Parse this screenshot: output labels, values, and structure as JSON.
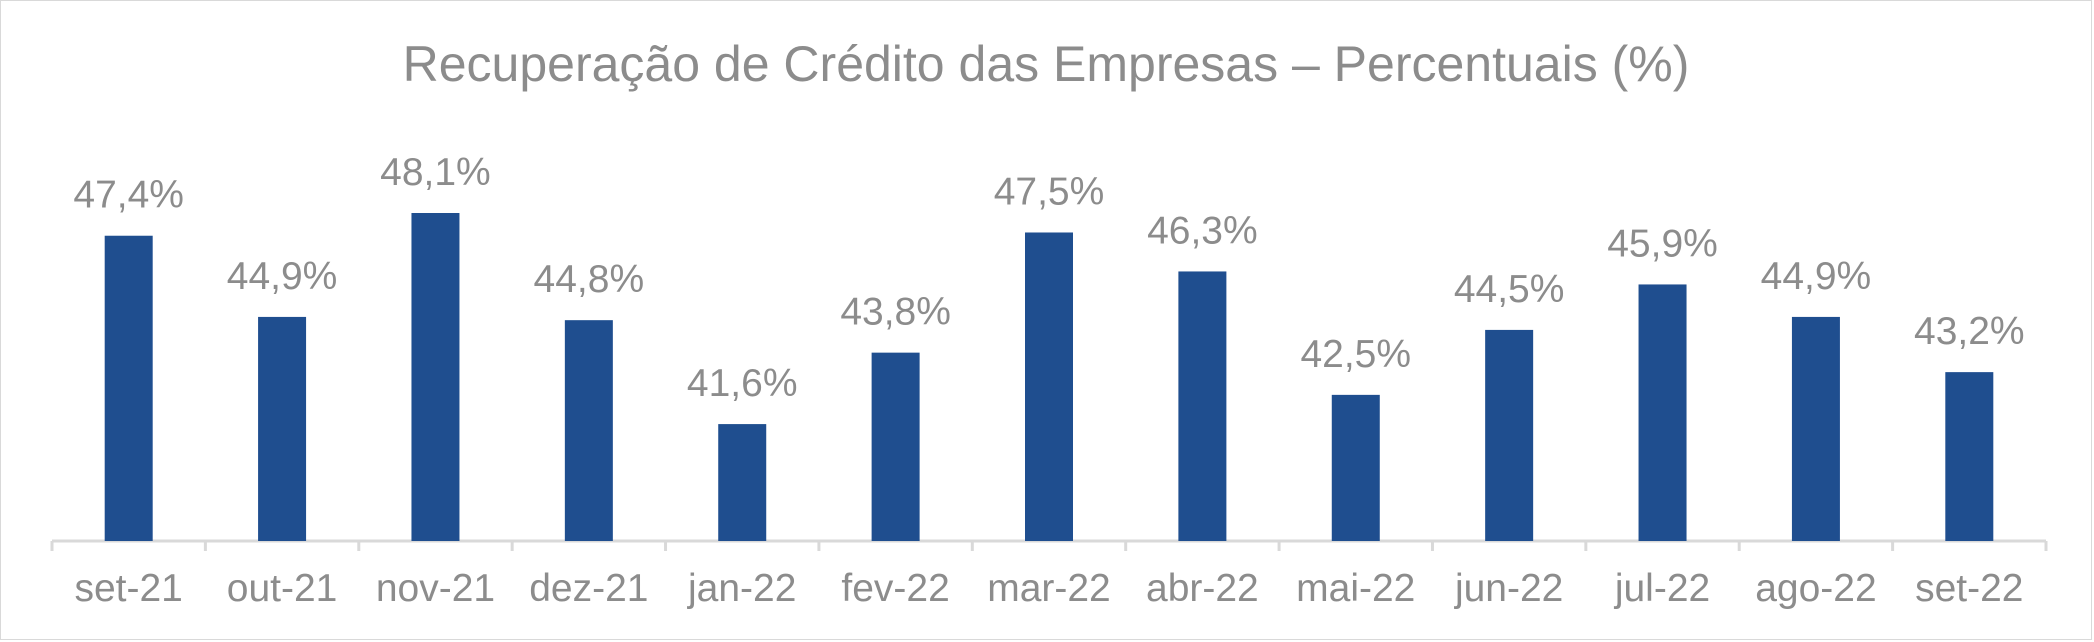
{
  "chart_data": {
    "type": "bar",
    "title": "Recuperação de Crédito das Empresas – Percentuais (%)",
    "categories": [
      "set-21",
      "out-21",
      "nov-21",
      "dez-21",
      "jan-22",
      "fev-22",
      "mar-22",
      "abr-22",
      "mai-22",
      "jun-22",
      "jul-22",
      "ago-22",
      "set-22"
    ],
    "values": [
      47.4,
      44.9,
      48.1,
      44.8,
      41.6,
      43.8,
      47.5,
      46.3,
      42.5,
      44.5,
      45.9,
      44.9,
      43.2
    ],
    "data_labels": [
      "47,4%",
      "44,9%",
      "48,1%",
      "44,8%",
      "41,6%",
      "43,8%",
      "47,5%",
      "46,3%",
      "42,5%",
      "44,5%",
      "45,9%",
      "44,9%",
      "43,2%"
    ],
    "xlabel": "",
    "ylabel": "",
    "ylim": [
      38,
      50
    ],
    "grid": false,
    "legend": "none",
    "colors": {
      "bar": "#1F4E8F",
      "text": "#8C8C8C",
      "axis": "#D9D9D9"
    }
  }
}
